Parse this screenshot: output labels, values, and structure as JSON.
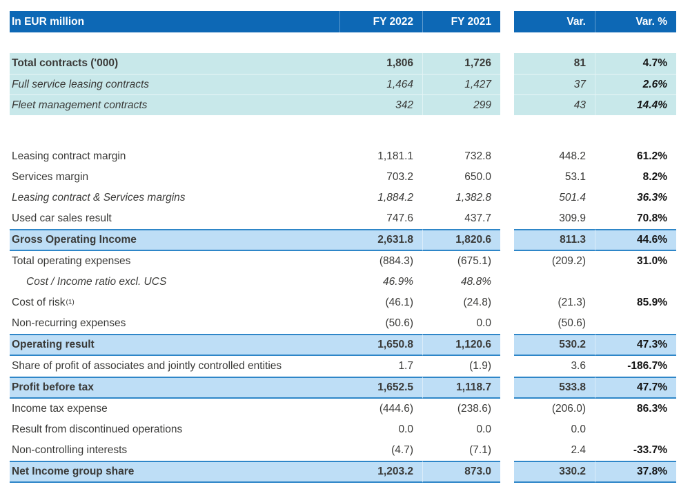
{
  "table": {
    "header": {
      "label": "In EUR million",
      "fy2022": "FY 2022",
      "fy2021": "FY 2021",
      "var": "Var.",
      "var_pct": "Var. %"
    },
    "colors": {
      "header_bg": "#0d68b5",
      "header_text": "#ffffff",
      "contracts_band_bg": "#c8e8ea",
      "highlight_bg": "#bedef6",
      "highlight_border": "#2e86c8",
      "body_text": "#3a3a38",
      "var_pct_text": "#141414"
    },
    "rows": [
      {
        "label": "Total contracts ('000)",
        "values": [
          "1,806",
          "1,726",
          "81",
          "4.7%"
        ],
        "styles": [
          "cyan",
          "bold",
          "gap-small"
        ]
      },
      {
        "label": "Full service leasing contracts",
        "values": [
          "1,464",
          "1,427",
          "37",
          "2.6%"
        ],
        "styles": [
          "cyan",
          "italic",
          "sep"
        ]
      },
      {
        "label": "Fleet management contracts",
        "values": [
          "342",
          "299",
          "43",
          "14.4%"
        ],
        "styles": [
          "cyan",
          "italic",
          "sep"
        ]
      },
      {
        "label": "Leasing contract margin",
        "values": [
          "1,181.1",
          "732.8",
          "448.2",
          "61.2%"
        ],
        "styles": [
          "gap-large"
        ]
      },
      {
        "label": "Services margin",
        "values": [
          "703.2",
          "650.0",
          "53.1",
          "8.2%"
        ],
        "styles": []
      },
      {
        "label": "Leasing contract & Services margins",
        "values": [
          "1,884.2",
          "1,382.8",
          "501.4",
          "36.3%"
        ],
        "styles": [
          "italic"
        ]
      },
      {
        "label": "Used car sales result",
        "values": [
          "747.6",
          "437.7",
          "309.9",
          "70.8%"
        ],
        "styles": []
      },
      {
        "label": "Gross Operating Income",
        "values": [
          "2,631.8",
          "1,820.6",
          "811.3",
          "44.6%"
        ],
        "styles": [
          "hl"
        ]
      },
      {
        "label": "Total operating expenses",
        "values": [
          "(884.3)",
          "(675.1)",
          "(209.2)",
          "31.0%"
        ],
        "styles": []
      },
      {
        "label": "Cost / Income ratio excl. UCS",
        "values": [
          "46.9%",
          "48.8%",
          "",
          ""
        ],
        "styles": [
          "italic",
          "indent"
        ]
      },
      {
        "label": "Cost of risk",
        "sup": "(1)",
        "values": [
          "(46.1)",
          "(24.8)",
          "(21.3)",
          "85.9%"
        ],
        "styles": []
      },
      {
        "label": "Non-recurring expenses",
        "values": [
          "(50.6)",
          "0.0",
          "(50.6)",
          ""
        ],
        "styles": []
      },
      {
        "label": "Operating result",
        "values": [
          "1,650.8",
          "1,120.6",
          "530.2",
          "47.3%"
        ],
        "styles": [
          "hl"
        ]
      },
      {
        "label": "Share of profit of associates and jointly controlled entities",
        "values": [
          "1.7",
          "(1.9)",
          "3.6",
          "-186.7%"
        ],
        "styles": []
      },
      {
        "label": "Profit before tax",
        "values": [
          "1,652.5",
          "1,118.7",
          "533.8",
          "47.7%"
        ],
        "styles": [
          "hl"
        ]
      },
      {
        "label": "Income tax expense",
        "values": [
          "(444.6)",
          "(238.6)",
          "(206.0)",
          "86.3%"
        ],
        "styles": []
      },
      {
        "label": "Result from discontinued operations",
        "values": [
          "0.0",
          "0.0",
          "0.0",
          ""
        ],
        "styles": []
      },
      {
        "label": "Non-controlling interests",
        "values": [
          "(4.7)",
          "(7.1)",
          "2.4",
          "-33.7%"
        ],
        "styles": []
      },
      {
        "label": "Net Income group share",
        "values": [
          "1,203.2",
          "873.0",
          "330.2",
          "37.8%"
        ],
        "styles": [
          "hl"
        ]
      }
    ]
  }
}
